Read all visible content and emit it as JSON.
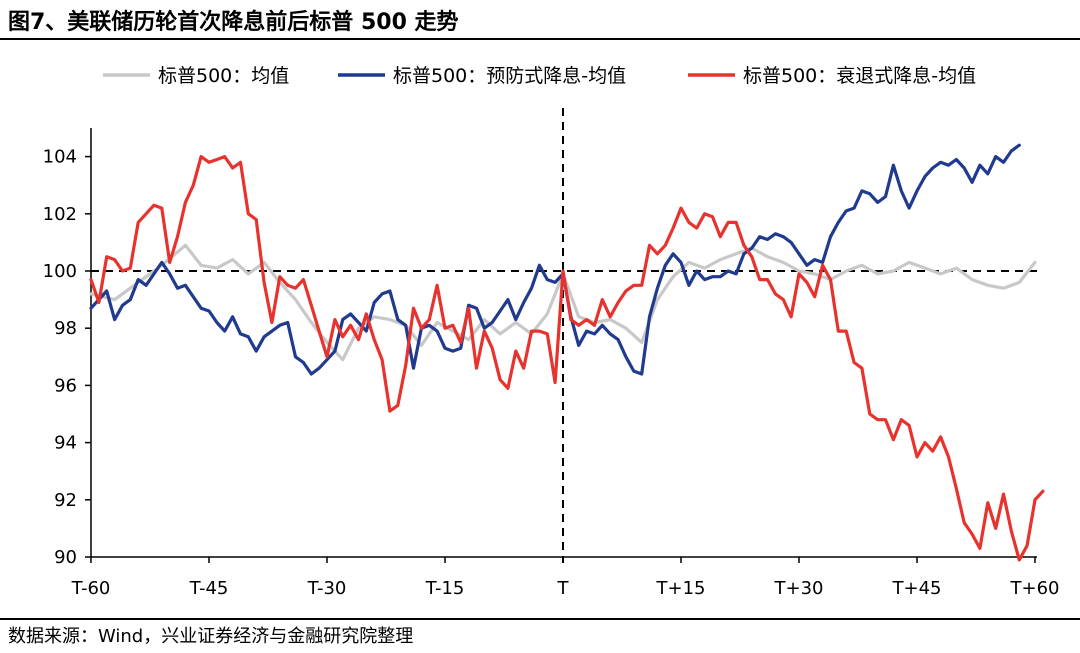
{
  "header": {
    "title": "图7、美联储历轮首次降息前后标普 500 走势"
  },
  "footer": {
    "source": "数据来源：Wind，兴业证券经济与金融研究院整理"
  },
  "chart_data": {
    "type": "line",
    "title": "图7、美联储历轮首次降息前后标普 500 走势",
    "xlabel": "",
    "ylabel": "",
    "x_range": [
      -60,
      60
    ],
    "x_ticks": [
      {
        "t": -60,
        "label": "T-60"
      },
      {
        "t": -45,
        "label": "T-45"
      },
      {
        "t": -30,
        "label": "T-30"
      },
      {
        "t": -15,
        "label": "T-15"
      },
      {
        "t": 0,
        "label": "T"
      },
      {
        "t": 15,
        "label": "T+15"
      },
      {
        "t": 30,
        "label": "T+30"
      },
      {
        "t": 45,
        "label": "T+45"
      },
      {
        "t": 60,
        "label": "T+60"
      }
    ],
    "ylim": [
      90,
      105
    ],
    "y_ticks": [
      90,
      92,
      94,
      96,
      98,
      100,
      102,
      104
    ],
    "reference_lines": {
      "horizontal": 100,
      "vertical": 0
    },
    "legend_position": "top",
    "grid": false,
    "colors": {
      "avg": "#c8c8c8",
      "preventive": "#1f3a8f",
      "recession": "#e8322d",
      "axis": "#000000"
    },
    "series": [
      {
        "name": "标普500：均值",
        "color": "#c8c8c8",
        "points": [
          [
            -60,
            99.2
          ],
          [
            -57,
            99.0
          ],
          [
            -54,
            99.6
          ],
          [
            -51,
            100.2
          ],
          [
            -48,
            100.9
          ],
          [
            -46,
            100.2
          ],
          [
            -44,
            100.1
          ],
          [
            -42,
            100.4
          ],
          [
            -40,
            99.9
          ],
          [
            -38,
            100.3
          ],
          [
            -36,
            99.6
          ],
          [
            -34,
            99.0
          ],
          [
            -32,
            98.2
          ],
          [
            -30,
            97.5
          ],
          [
            -28,
            96.9
          ],
          [
            -26,
            98.0
          ],
          [
            -24,
            98.4
          ],
          [
            -22,
            98.3
          ],
          [
            -20,
            98.1
          ],
          [
            -18,
            97.4
          ],
          [
            -16,
            98.2
          ],
          [
            -14,
            97.9
          ],
          [
            -12,
            97.6
          ],
          [
            -10,
            98.3
          ],
          [
            -8,
            97.8
          ],
          [
            -6,
            98.2
          ],
          [
            -4,
            97.8
          ],
          [
            -2,
            98.5
          ],
          [
            0,
            99.9
          ],
          [
            2,
            98.4
          ],
          [
            4,
            98.2
          ],
          [
            6,
            98.3
          ],
          [
            8,
            98.0
          ],
          [
            10,
            97.5
          ],
          [
            12,
            99.0
          ],
          [
            14,
            99.8
          ],
          [
            16,
            100.3
          ],
          [
            18,
            100.1
          ],
          [
            20,
            100.4
          ],
          [
            22,
            100.6
          ],
          [
            24,
            100.8
          ],
          [
            26,
            100.5
          ],
          [
            28,
            100.3
          ],
          [
            30,
            100.0
          ],
          [
            32,
            99.9
          ],
          [
            34,
            99.7
          ],
          [
            36,
            100.0
          ],
          [
            38,
            100.2
          ],
          [
            40,
            99.9
          ],
          [
            42,
            100.0
          ],
          [
            44,
            100.3
          ],
          [
            46,
            100.1
          ],
          [
            48,
            99.9
          ],
          [
            50,
            100.1
          ],
          [
            52,
            99.7
          ],
          [
            54,
            99.5
          ],
          [
            56,
            99.4
          ],
          [
            58,
            99.6
          ],
          [
            60,
            100.3
          ]
        ]
      },
      {
        "name": "标普500：预防式降息-均值",
        "color": "#1f3a8f",
        "points": [
          [
            -60,
            98.7
          ],
          [
            -58,
            99.3
          ],
          [
            -57,
            98.3
          ],
          [
            -56,
            98.8
          ],
          [
            -55,
            99.0
          ],
          [
            -54,
            99.7
          ],
          [
            -53,
            99.5
          ],
          [
            -51,
            100.3
          ],
          [
            -50,
            99.9
          ],
          [
            -49,
            99.4
          ],
          [
            -48,
            99.5
          ],
          [
            -46,
            98.7
          ],
          [
            -45,
            98.6
          ],
          [
            -44,
            98.2
          ],
          [
            -43,
            97.9
          ],
          [
            -42,
            98.4
          ],
          [
            -41,
            97.8
          ],
          [
            -40,
            97.7
          ],
          [
            -39,
            97.2
          ],
          [
            -38,
            97.7
          ],
          [
            -36,
            98.1
          ],
          [
            -35,
            98.2
          ],
          [
            -34,
            97.0
          ],
          [
            -33,
            96.8
          ],
          [
            -32,
            96.4
          ],
          [
            -31,
            96.6
          ],
          [
            -30,
            96.9
          ],
          [
            -29,
            97.2
          ],
          [
            -28,
            98.3
          ],
          [
            -27,
            98.5
          ],
          [
            -26,
            98.2
          ],
          [
            -25,
            97.9
          ],
          [
            -24,
            98.9
          ],
          [
            -23,
            99.2
          ],
          [
            -22,
            99.3
          ],
          [
            -21,
            98.3
          ],
          [
            -20,
            98.1
          ],
          [
            -19,
            96.6
          ],
          [
            -18,
            98.0
          ],
          [
            -17,
            98.1
          ],
          [
            -16,
            97.9
          ],
          [
            -15,
            97.3
          ],
          [
            -14,
            97.2
          ],
          [
            -13,
            97.3
          ],
          [
            -12,
            98.8
          ],
          [
            -11,
            98.7
          ],
          [
            -10,
            98.0
          ],
          [
            -9,
            98.2
          ],
          [
            -8,
            98.6
          ],
          [
            -7,
            99.0
          ],
          [
            -6,
            98.3
          ],
          [
            -5,
            98.9
          ],
          [
            -4,
            99.4
          ],
          [
            -3,
            100.2
          ],
          [
            -2,
            99.7
          ],
          [
            -1,
            99.6
          ],
          [
            0,
            99.9
          ],
          [
            1,
            98.4
          ],
          [
            2,
            97.4
          ],
          [
            3,
            97.9
          ],
          [
            4,
            97.8
          ],
          [
            5,
            98.1
          ],
          [
            6,
            97.8
          ],
          [
            7,
            97.6
          ],
          [
            8,
            97.0
          ],
          [
            9,
            96.5
          ],
          [
            10,
            96.4
          ],
          [
            11,
            98.4
          ],
          [
            12,
            99.4
          ],
          [
            13,
            100.2
          ],
          [
            14,
            100.6
          ],
          [
            15,
            100.3
          ],
          [
            16,
            99.5
          ],
          [
            17,
            100.0
          ],
          [
            18,
            99.7
          ],
          [
            19,
            99.8
          ],
          [
            20,
            99.8
          ],
          [
            21,
            100.0
          ],
          [
            22,
            99.9
          ],
          [
            23,
            100.6
          ],
          [
            24,
            100.8
          ],
          [
            25,
            101.2
          ],
          [
            26,
            101.1
          ],
          [
            27,
            101.3
          ],
          [
            28,
            101.2
          ],
          [
            29,
            101.0
          ],
          [
            30,
            100.6
          ],
          [
            31,
            100.2
          ],
          [
            32,
            100.4
          ],
          [
            33,
            100.3
          ],
          [
            34,
            101.2
          ],
          [
            35,
            101.7
          ],
          [
            36,
            102.1
          ],
          [
            37,
            102.2
          ],
          [
            38,
            102.8
          ],
          [
            39,
            102.7
          ],
          [
            40,
            102.4
          ],
          [
            41,
            102.6
          ],
          [
            42,
            103.7
          ],
          [
            43,
            102.8
          ],
          [
            44,
            102.2
          ],
          [
            45,
            102.8
          ],
          [
            46,
            103.3
          ],
          [
            47,
            103.6
          ],
          [
            48,
            103.8
          ],
          [
            49,
            103.7
          ],
          [
            50,
            103.9
          ],
          [
            51,
            103.6
          ],
          [
            52,
            103.1
          ],
          [
            53,
            103.7
          ],
          [
            54,
            103.4
          ],
          [
            55,
            104.0
          ],
          [
            56,
            103.8
          ],
          [
            57,
            104.2
          ],
          [
            58,
            104.4
          ]
        ]
      },
      {
        "name": "标普500：衰退式降息-均值",
        "color": "#e8322d",
        "points": [
          [
            -60,
            99.7
          ],
          [
            -59,
            98.9
          ],
          [
            -58,
            100.5
          ],
          [
            -57,
            100.4
          ],
          [
            -56,
            100.0
          ],
          [
            -55,
            100.1
          ],
          [
            -54,
            101.7
          ],
          [
            -53,
            102.0
          ],
          [
            -52,
            102.3
          ],
          [
            -51,
            102.2
          ],
          [
            -50,
            100.3
          ],
          [
            -49,
            101.2
          ],
          [
            -48,
            102.4
          ],
          [
            -47,
            103.0
          ],
          [
            -46,
            104.0
          ],
          [
            -45,
            103.8
          ],
          [
            -44,
            103.9
          ],
          [
            -43,
            104.0
          ],
          [
            -42,
            103.6
          ],
          [
            -41,
            103.8
          ],
          [
            -40,
            102.0
          ],
          [
            -39,
            101.8
          ],
          [
            -38,
            99.6
          ],
          [
            -37,
            98.2
          ],
          [
            -36,
            99.8
          ],
          [
            -35,
            99.5
          ],
          [
            -34,
            99.4
          ],
          [
            -33,
            99.7
          ],
          [
            -32,
            98.8
          ],
          [
            -31,
            97.9
          ],
          [
            -30,
            97.0
          ],
          [
            -29,
            98.3
          ],
          [
            -28,
            97.7
          ],
          [
            -27,
            98.1
          ],
          [
            -26,
            97.6
          ],
          [
            -25,
            98.5
          ],
          [
            -24,
            97.6
          ],
          [
            -23,
            96.9
          ],
          [
            -22,
            95.1
          ],
          [
            -21,
            95.3
          ],
          [
            -20,
            96.7
          ],
          [
            -19,
            98.7
          ],
          [
            -18,
            98.0
          ],
          [
            -17,
            98.3
          ],
          [
            -16,
            99.5
          ],
          [
            -15,
            98.0
          ],
          [
            -14,
            98.1
          ],
          [
            -13,
            97.5
          ],
          [
            -12,
            98.7
          ],
          [
            -11,
            96.6
          ],
          [
            -10,
            97.9
          ],
          [
            -9,
            97.3
          ],
          [
            -8,
            96.2
          ],
          [
            -7,
            95.9
          ],
          [
            -6,
            97.2
          ],
          [
            -5,
            96.6
          ],
          [
            -4,
            97.9
          ],
          [
            -3,
            97.9
          ],
          [
            -2,
            97.8
          ],
          [
            -1,
            96.1
          ],
          [
            0,
            100.0
          ],
          [
            1,
            98.3
          ],
          [
            2,
            98.1
          ],
          [
            3,
            98.3
          ],
          [
            4,
            98.1
          ],
          [
            5,
            99.0
          ],
          [
            6,
            98.4
          ],
          [
            7,
            98.9
          ],
          [
            8,
            99.3
          ],
          [
            9,
            99.5
          ],
          [
            10,
            99.5
          ],
          [
            11,
            100.9
          ],
          [
            12,
            100.6
          ],
          [
            13,
            100.9
          ],
          [
            14,
            101.5
          ],
          [
            15,
            102.2
          ],
          [
            16,
            101.7
          ],
          [
            17,
            101.5
          ],
          [
            18,
            102.0
          ],
          [
            19,
            101.9
          ],
          [
            20,
            101.2
          ],
          [
            21,
            101.7
          ],
          [
            22,
            101.7
          ],
          [
            23,
            100.9
          ],
          [
            24,
            100.5
          ],
          [
            25,
            99.7
          ],
          [
            26,
            99.7
          ],
          [
            27,
            99.2
          ],
          [
            28,
            99.0
          ],
          [
            29,
            98.4
          ],
          [
            30,
            99.9
          ],
          [
            31,
            99.6
          ],
          [
            32,
            99.1
          ],
          [
            33,
            100.2
          ],
          [
            34,
            99.7
          ],
          [
            35,
            97.9
          ],
          [
            36,
            97.9
          ],
          [
            37,
            96.8
          ],
          [
            38,
            96.6
          ],
          [
            39,
            95.0
          ],
          [
            40,
            94.8
          ],
          [
            41,
            94.8
          ],
          [
            42,
            94.1
          ],
          [
            43,
            94.8
          ],
          [
            44,
            94.6
          ],
          [
            45,
            93.5
          ],
          [
            46,
            94.0
          ],
          [
            47,
            93.7
          ],
          [
            48,
            94.2
          ],
          [
            49,
            93.5
          ],
          [
            50,
            92.4
          ],
          [
            51,
            91.2
          ],
          [
            52,
            90.8
          ],
          [
            53,
            90.3
          ],
          [
            54,
            91.9
          ],
          [
            55,
            91.0
          ],
          [
            56,
            92.2
          ],
          [
            57,
            90.9
          ],
          [
            58,
            89.9
          ],
          [
            59,
            90.4
          ],
          [
            60,
            92.0
          ],
          [
            61,
            92.3
          ]
        ]
      }
    ]
  }
}
